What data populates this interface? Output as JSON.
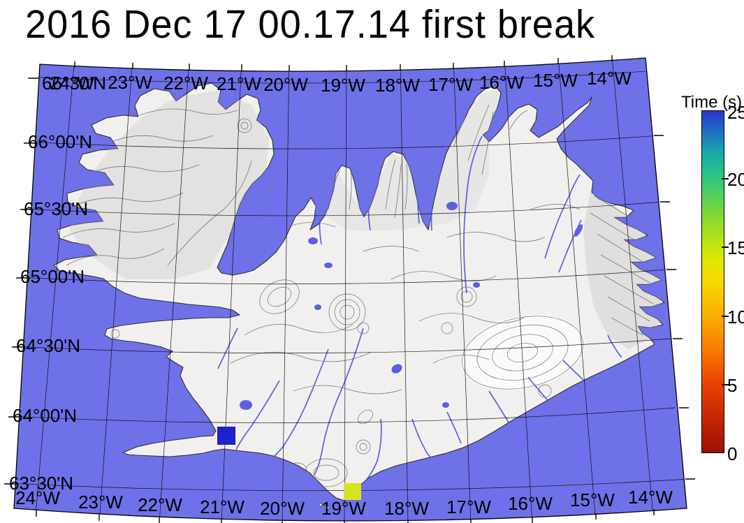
{
  "title": "2016 Dec 17 00.17.14 first break",
  "map": {
    "region_name": "Iceland",
    "grid": {
      "meridians": [
        "24°W",
        "23°W",
        "22°W",
        "21°W",
        "20°W",
        "19°W",
        "18°W",
        "17°W",
        "16°W",
        "15°W",
        "14°W"
      ],
      "parallels": [
        "66°30'N",
        "66°00'N",
        "65°30'N",
        "65°00'N",
        "64°30'N",
        "64°00'N",
        "63°30'N"
      ]
    },
    "colors": {
      "ocean": "#6f71e8",
      "land": "#f1f0ee",
      "coast": "#2f2f2f",
      "rivers": "#5c5fe2",
      "contours": "#5a5a5a",
      "graticule": "#000000"
    },
    "markers": [
      {
        "id": "station-west",
        "shape": "square",
        "color": "#1d22cb",
        "approx_position": "21.0°W, 63.9°N"
      },
      {
        "id": "station-south",
        "shape": "square",
        "color": "#d5e41f",
        "approx_position": "19.1°W, 63.5°N"
      }
    ]
  },
  "colorbar": {
    "label": "Time (s)",
    "min": 0,
    "max": 25,
    "tick_labels": [
      "25",
      "20",
      "15",
      "10",
      "5",
      "0"
    ],
    "gradient_stops": [
      {
        "value": 0,
        "color": "#9b1000"
      },
      {
        "value": 2.5,
        "color": "#c52600"
      },
      {
        "value": 5,
        "color": "#e84300"
      },
      {
        "value": 7.5,
        "color": "#f87b00"
      },
      {
        "value": 10,
        "color": "#fcae00"
      },
      {
        "value": 12.5,
        "color": "#f6d900"
      },
      {
        "value": 14,
        "color": "#e3e705"
      },
      {
        "value": 15,
        "color": "#c4e60b"
      },
      {
        "value": 17.5,
        "color": "#7fd737"
      },
      {
        "value": 20,
        "color": "#2fc97e"
      },
      {
        "value": 22,
        "color": "#17a7ab"
      },
      {
        "value": 23.5,
        "color": "#1e6ec5"
      },
      {
        "value": 25,
        "color": "#2a33cc"
      }
    ]
  },
  "chart_data": {
    "type": "map",
    "title": "2016 Dec 17 00.17.14 first break",
    "region": "Iceland",
    "lon_range_deg_w": [
      24,
      13.5
    ],
    "lat_range_deg_n": [
      63.3,
      66.6
    ],
    "colorbar": {
      "label": "Time (s)",
      "range": [
        0,
        25
      ],
      "ticks": [
        0,
        5,
        10,
        15,
        20,
        25
      ]
    },
    "stations": [
      {
        "approx_lon_deg_w": 21.0,
        "approx_lat_deg_n": 63.9,
        "marker_color": "#1d22cb"
      },
      {
        "approx_lon_deg_w": 19.1,
        "approx_lat_deg_n": 63.5,
        "marker_color": "#d5e41f"
      }
    ]
  }
}
